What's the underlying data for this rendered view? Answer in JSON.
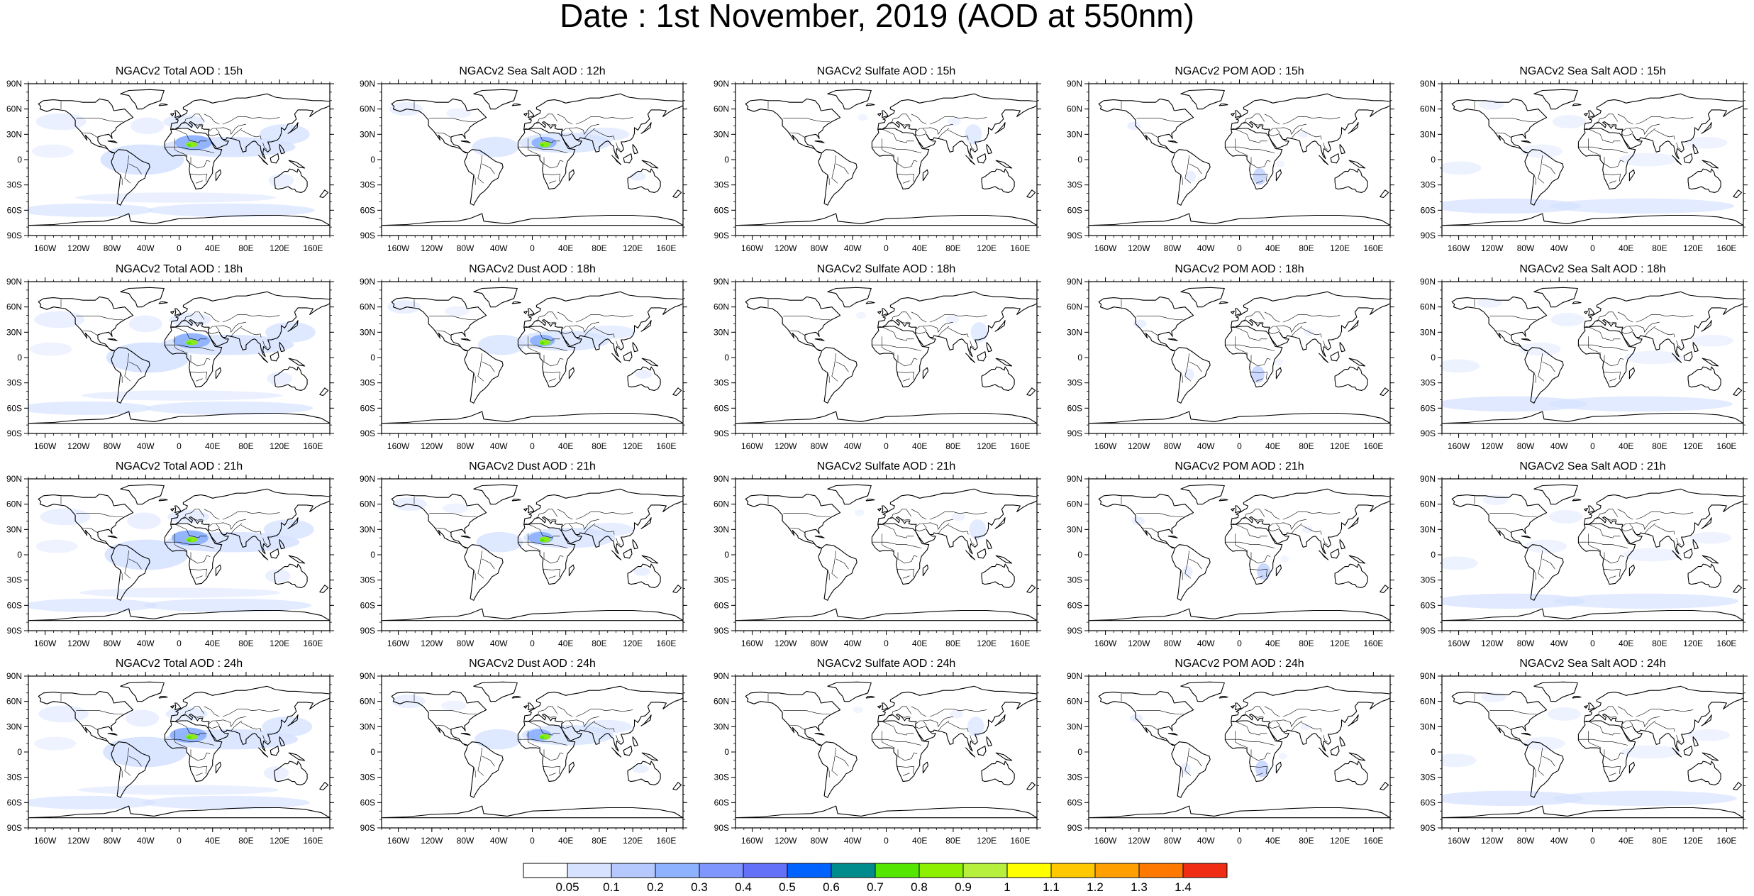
{
  "title": "Date : 1st November, 2019 (AOD at 550nm)",
  "panels": [
    [
      "NGACv2 Total AOD : 15h",
      "NGACv2 Sea Salt  AOD : 12h",
      "NGACv2 Sulfate AOD : 15h",
      "NGACv2 POM AOD : 15h",
      "NGACv2 Sea Salt AOD : 15h"
    ],
    [
      "NGACv2 Total AOD : 18h",
      "NGACv2 Dust AOD : 18h",
      "NGACv2 Sulfate AOD : 18h",
      "NGACv2 POM AOD : 18h",
      "NGACv2 Sea Salt AOD : 18h"
    ],
    [
      "NGACv2 Total AOD : 21h",
      "NGACv2 Dust AOD : 21h",
      "NGACv2 Sulfate AOD : 21h",
      "NGACv2 POM AOD : 21h",
      "NGACv2 Sea Salt AOD : 21h"
    ],
    [
      "NGACv2 Total AOD : 24h",
      "NGACv2 Dust AOD : 24h",
      "NGACv2 Sulfate AOD : 24h",
      "NGACv2 POM AOD : 24h",
      "NGACv2 Sea Salt  AOD : 24h"
    ]
  ],
  "lat_ticks": [
    "90N",
    "60N",
    "30N",
    "0",
    "30S",
    "60S",
    "90S"
  ],
  "lon_ticks": [
    "160W",
    "120W",
    "80W",
    "40W",
    "0",
    "40E",
    "80E",
    "120E",
    "160E"
  ],
  "colorbar": {
    "labels": [
      "0.05",
      "0.1",
      "0.2",
      "0.3",
      "0.4",
      "0.5",
      "0.6",
      "0.7",
      "0.8",
      "0.9",
      "1",
      "1.1",
      "1.2",
      "1.3",
      "1.4"
    ],
    "colors": [
      "#ffffff",
      "#d6e2ff",
      "#b5c9ff",
      "#8eb2ff",
      "#7f96ff",
      "#6370f8",
      "#0062ff",
      "#008c8c",
      "#55e600",
      "#8cf000",
      "#b7f03c",
      "#ffff00",
      "#ffc800",
      "#ffa000",
      "#ff7800",
      "#f02d14"
    ]
  }
}
